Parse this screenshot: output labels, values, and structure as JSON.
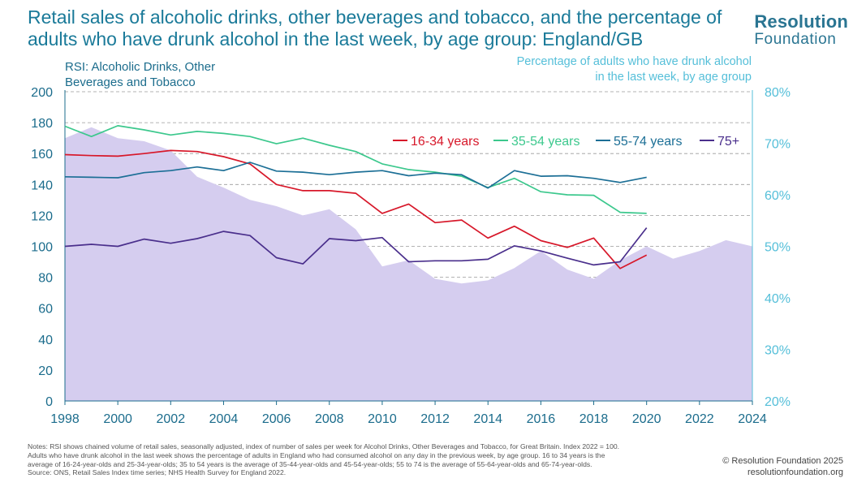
{
  "header": {
    "title": "Retail sales of alcoholic drinks, other beverages and tobacco, and the percentage of adults who have drunk alcohol in the last week, by age group: England/GB",
    "brand_top": "Resolution",
    "brand_bottom": "Foundation"
  },
  "axes": {
    "left_title": "RSI: Alcoholic Drinks, Other Beverages and Tobacco",
    "right_title": "Percentage of adults who have drunk alcohol in the last week, by age group"
  },
  "chart_data": {
    "type": "line",
    "title": "Retail sales of alcoholic drinks, other beverages and tobacco, and the percentage of adults who have drunk alcohol in the last week, by age group: England/GB",
    "xlim": [
      1998,
      2024
    ],
    "x_ticks": [
      1998,
      2000,
      2002,
      2004,
      2006,
      2008,
      2010,
      2012,
      2014,
      2016,
      2018,
      2020,
      2022,
      2024
    ],
    "y_left": {
      "label": "RSI: Alcoholic Drinks, Other Beverages and Tobacco",
      "lim": [
        0,
        200
      ],
      "ticks": [
        0,
        20,
        40,
        60,
        80,
        100,
        120,
        140,
        160,
        180,
        200
      ]
    },
    "y_right": {
      "label": "Percentage of adults who have drunk alcohol in the last week, by age group",
      "lim": [
        20,
        80
      ],
      "ticks": [
        "20%",
        "30%",
        "40%",
        "50%",
        "60%",
        "70%",
        "80%"
      ]
    },
    "grid": "horizontal dashed",
    "area": {
      "name": "RSI: Alcoholic Drinks, Other Beverages and Tobacco",
      "axis": "left",
      "color": "#d5cdef",
      "x": [
        1998,
        1999,
        2000,
        2001,
        2002,
        2003,
        2004,
        2005,
        2006,
        2007,
        2008,
        2009,
        2010,
        2011,
        2012,
        2013,
        2014,
        2015,
        2016,
        2017,
        2018,
        2019,
        2020,
        2021,
        2022,
        2023,
        2024
      ],
      "values": [
        170,
        177,
        170,
        168,
        162,
        145,
        138,
        130,
        126,
        120,
        124,
        111,
        87,
        91,
        79,
        76,
        78,
        86,
        97,
        85,
        79,
        91,
        100,
        92,
        97,
        104,
        100
      ]
    },
    "series": [
      {
        "name": "16-34 years",
        "axis": "right",
        "color": "#d7182a",
        "x": [
          1998,
          1999,
          2000,
          2001,
          2002,
          2003,
          2004,
          2005,
          2006,
          2007,
          2008,
          2009,
          2010,
          2011,
          2012,
          2013,
          2014,
          2015,
          2016,
          2017,
          2018,
          2019,
          2020,
          2021,
          2022
        ],
        "values": [
          67.8,
          67.6,
          67.5,
          68,
          68.6,
          68.4,
          67.4,
          66,
          62,
          60.8,
          60.8,
          60.3,
          56.4,
          58.2,
          54.6,
          55.1,
          51.6,
          53.9,
          51.1,
          49.8,
          51.6,
          45.7,
          48.3,
          null,
          null
        ]
      },
      {
        "name": "35-54 years",
        "axis": "right",
        "color": "#3cc88d",
        "x": [
          1998,
          1999,
          2000,
          2001,
          2002,
          2003,
          2004,
          2005,
          2006,
          2007,
          2008,
          2009,
          2010,
          2011,
          2012,
          2013,
          2014,
          2015,
          2016,
          2017,
          2018,
          2019,
          2020,
          2021,
          2022
        ],
        "values": [
          73.3,
          71.3,
          73.4,
          72.6,
          71.6,
          72.3,
          71.9,
          71.3,
          69.9,
          71,
          69.6,
          68.4,
          66,
          64.9,
          64.4,
          63.6,
          61.4,
          63.2,
          60.6,
          60,
          59.9,
          56.6,
          56.4,
          null,
          null
        ]
      },
      {
        "name": "55-74 years",
        "axis": "right",
        "color": "#1c6f96",
        "x": [
          1998,
          1999,
          2000,
          2001,
          2002,
          2003,
          2004,
          2005,
          2006,
          2007,
          2008,
          2009,
          2010,
          2011,
          2012,
          2013,
          2014,
          2015,
          2016,
          2017,
          2018,
          2019,
          2020,
          2021,
          2022
        ],
        "values": [
          63.5,
          63.4,
          63.3,
          64.3,
          64.7,
          65.4,
          64.7,
          66.3,
          64.6,
          64.4,
          63.9,
          64.4,
          64.7,
          63.7,
          64.2,
          63.9,
          61.3,
          64.7,
          63.6,
          63.7,
          63.2,
          62.4,
          63.4,
          null,
          null
        ]
      },
      {
        "name": "75+",
        "axis": "right",
        "color": "#4a2f8c",
        "x": [
          1998,
          1999,
          2000,
          2001,
          2002,
          2003,
          2004,
          2005,
          2006,
          2007,
          2008,
          2009,
          2010,
          2011,
          2012,
          2013,
          2014,
          2015,
          2016,
          2017,
          2018,
          2019,
          2020,
          2021,
          2022
        ],
        "values": [
          50,
          50.4,
          50,
          51.4,
          50.6,
          51.5,
          52.9,
          52.1,
          47.8,
          46.6,
          51.5,
          51.1,
          51.7,
          47,
          47.2,
          47.2,
          47.5,
          50.1,
          49.1,
          47.7,
          46.4,
          47,
          53.6,
          null,
          null
        ]
      }
    ],
    "legend": "top-right inside plot"
  },
  "footer": {
    "notes": [
      "Notes: RSI shows chained volume of retail sales, seasonally adjusted, index of number of sales per week for Alcohol Drinks, Other Beverages and Tobacco, for Great Britain. Index 2022 = 100.",
      "Adults who have drunk alcohol in the last week shows the percentage of adults in England who had consumed alcohol on any day in the previous week, by age group. 16 to 34 years is the",
      "average of 16-24-year-olds and 25-34-year-olds; 35 to 54 years is the average of 35-44-year-olds and 45-54-year-olds; 55 to 74 is the average of 55-64-year-olds and 65-74-year-olds.",
      "Source: ONS, Retail Sales Index time series; NHS Health Survey for England 2022."
    ],
    "copyright": "© Resolution Foundation 2025",
    "website": "resolutionfoundation.org"
  }
}
